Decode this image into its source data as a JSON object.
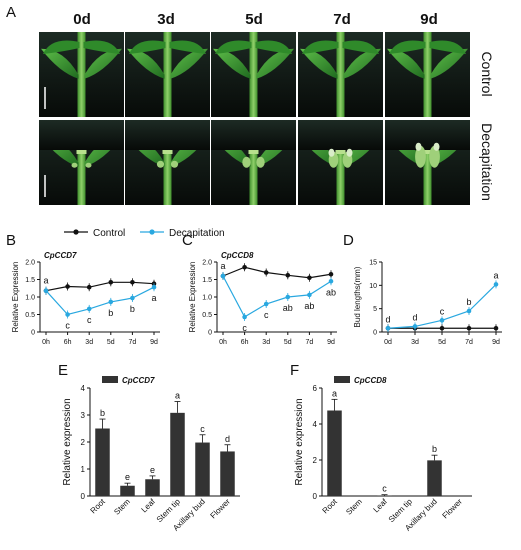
{
  "panel_labels": [
    "A",
    "B",
    "C",
    "D",
    "E",
    "F"
  ],
  "photo_panel": {
    "columns": [
      "0d",
      "3d",
      "5d",
      "7d",
      "9d"
    ],
    "rows": [
      "Control",
      "Decapitation"
    ]
  },
  "legend": {
    "control": "Control",
    "decapitation": "Decapitation"
  },
  "colors": {
    "control": "#111111",
    "decapitation": "#29a8e0",
    "bar": "#333333"
  },
  "chart_data": [
    {
      "id": "B",
      "type": "line",
      "title": "CpCCD7",
      "x": [
        "0h",
        "6h",
        "3d",
        "5d",
        "7d",
        "9d"
      ],
      "ylabel": "Relative Expression",
      "ylim": [
        0,
        2.0
      ],
      "yticks": [
        "0",
        "0.5",
        "1.0",
        "1.5",
        "2.0"
      ],
      "series": [
        {
          "name": "Control",
          "values": [
            1.18,
            1.3,
            1.28,
            1.42,
            1.42,
            1.38
          ]
        },
        {
          "name": "Decapitation",
          "values": [
            1.18,
            0.5,
            0.66,
            0.86,
            0.97,
            1.28
          ]
        }
      ],
      "annotations": [
        "a",
        "c",
        "c",
        "b",
        "b",
        "a"
      ]
    },
    {
      "id": "C",
      "type": "line",
      "title": "CpCCD8",
      "x": [
        "0h",
        "6h",
        "3d",
        "5d",
        "7d",
        "9d"
      ],
      "ylabel": "Relative Expression",
      "ylim": [
        0,
        2.0
      ],
      "yticks": [
        "0",
        "0.5",
        "1.0",
        "1.5",
        "2.0"
      ],
      "series": [
        {
          "name": "Control",
          "values": [
            1.6,
            1.85,
            1.7,
            1.62,
            1.55,
            1.65
          ]
        },
        {
          "name": "Decapitation",
          "values": [
            1.6,
            0.43,
            0.8,
            1.0,
            1.06,
            1.45
          ]
        }
      ],
      "annotations": [
        "a",
        "c",
        "c",
        "ab",
        "ab",
        "ab"
      ]
    },
    {
      "id": "D",
      "type": "line",
      "title": "",
      "x": [
        "0d",
        "3d",
        "5d",
        "7d",
        "9d"
      ],
      "ylabel": "Bud lengths(mm)",
      "ylim": [
        0,
        15
      ],
      "yticks": [
        "0",
        "5",
        "10",
        "15"
      ],
      "series": [
        {
          "name": "Control",
          "values": [
            0.8,
            0.8,
            0.8,
            0.8,
            0.8
          ]
        },
        {
          "name": "Decapitation",
          "values": [
            0.8,
            1.2,
            2.5,
            4.5,
            10.2
          ]
        }
      ],
      "annotations": [
        "d",
        "d",
        "c",
        "b",
        "a"
      ]
    },
    {
      "id": "E",
      "type": "bar",
      "title": "CpCCD7",
      "categories": [
        "Root",
        "Stem",
        "Leaf",
        "Stem tip",
        "Axillary bud",
        "Flower"
      ],
      "values": [
        2.5,
        0.38,
        0.62,
        3.08,
        1.98,
        1.65
      ],
      "ylabel": "Relative  expression",
      "ylim": [
        0,
        4
      ],
      "yticks": [
        "0",
        "1",
        "2",
        "3",
        "4"
      ],
      "annotations": [
        "b",
        "e",
        "e",
        "a",
        "c",
        "d"
      ]
    },
    {
      "id": "F",
      "type": "bar",
      "title": "CpCCD8",
      "categories": [
        "Root",
        "Stem",
        "Leaf",
        "Stem tip",
        "Axillary bud",
        "Flower"
      ],
      "values": [
        4.75,
        0,
        0.02,
        0,
        1.98,
        0
      ],
      "ylabel": "Relative  expression",
      "ylim": [
        0,
        6
      ],
      "yticks": [
        "0",
        "2",
        "4",
        "6"
      ],
      "annotations": [
        "a",
        "",
        "c",
        "",
        "b",
        ""
      ]
    }
  ]
}
